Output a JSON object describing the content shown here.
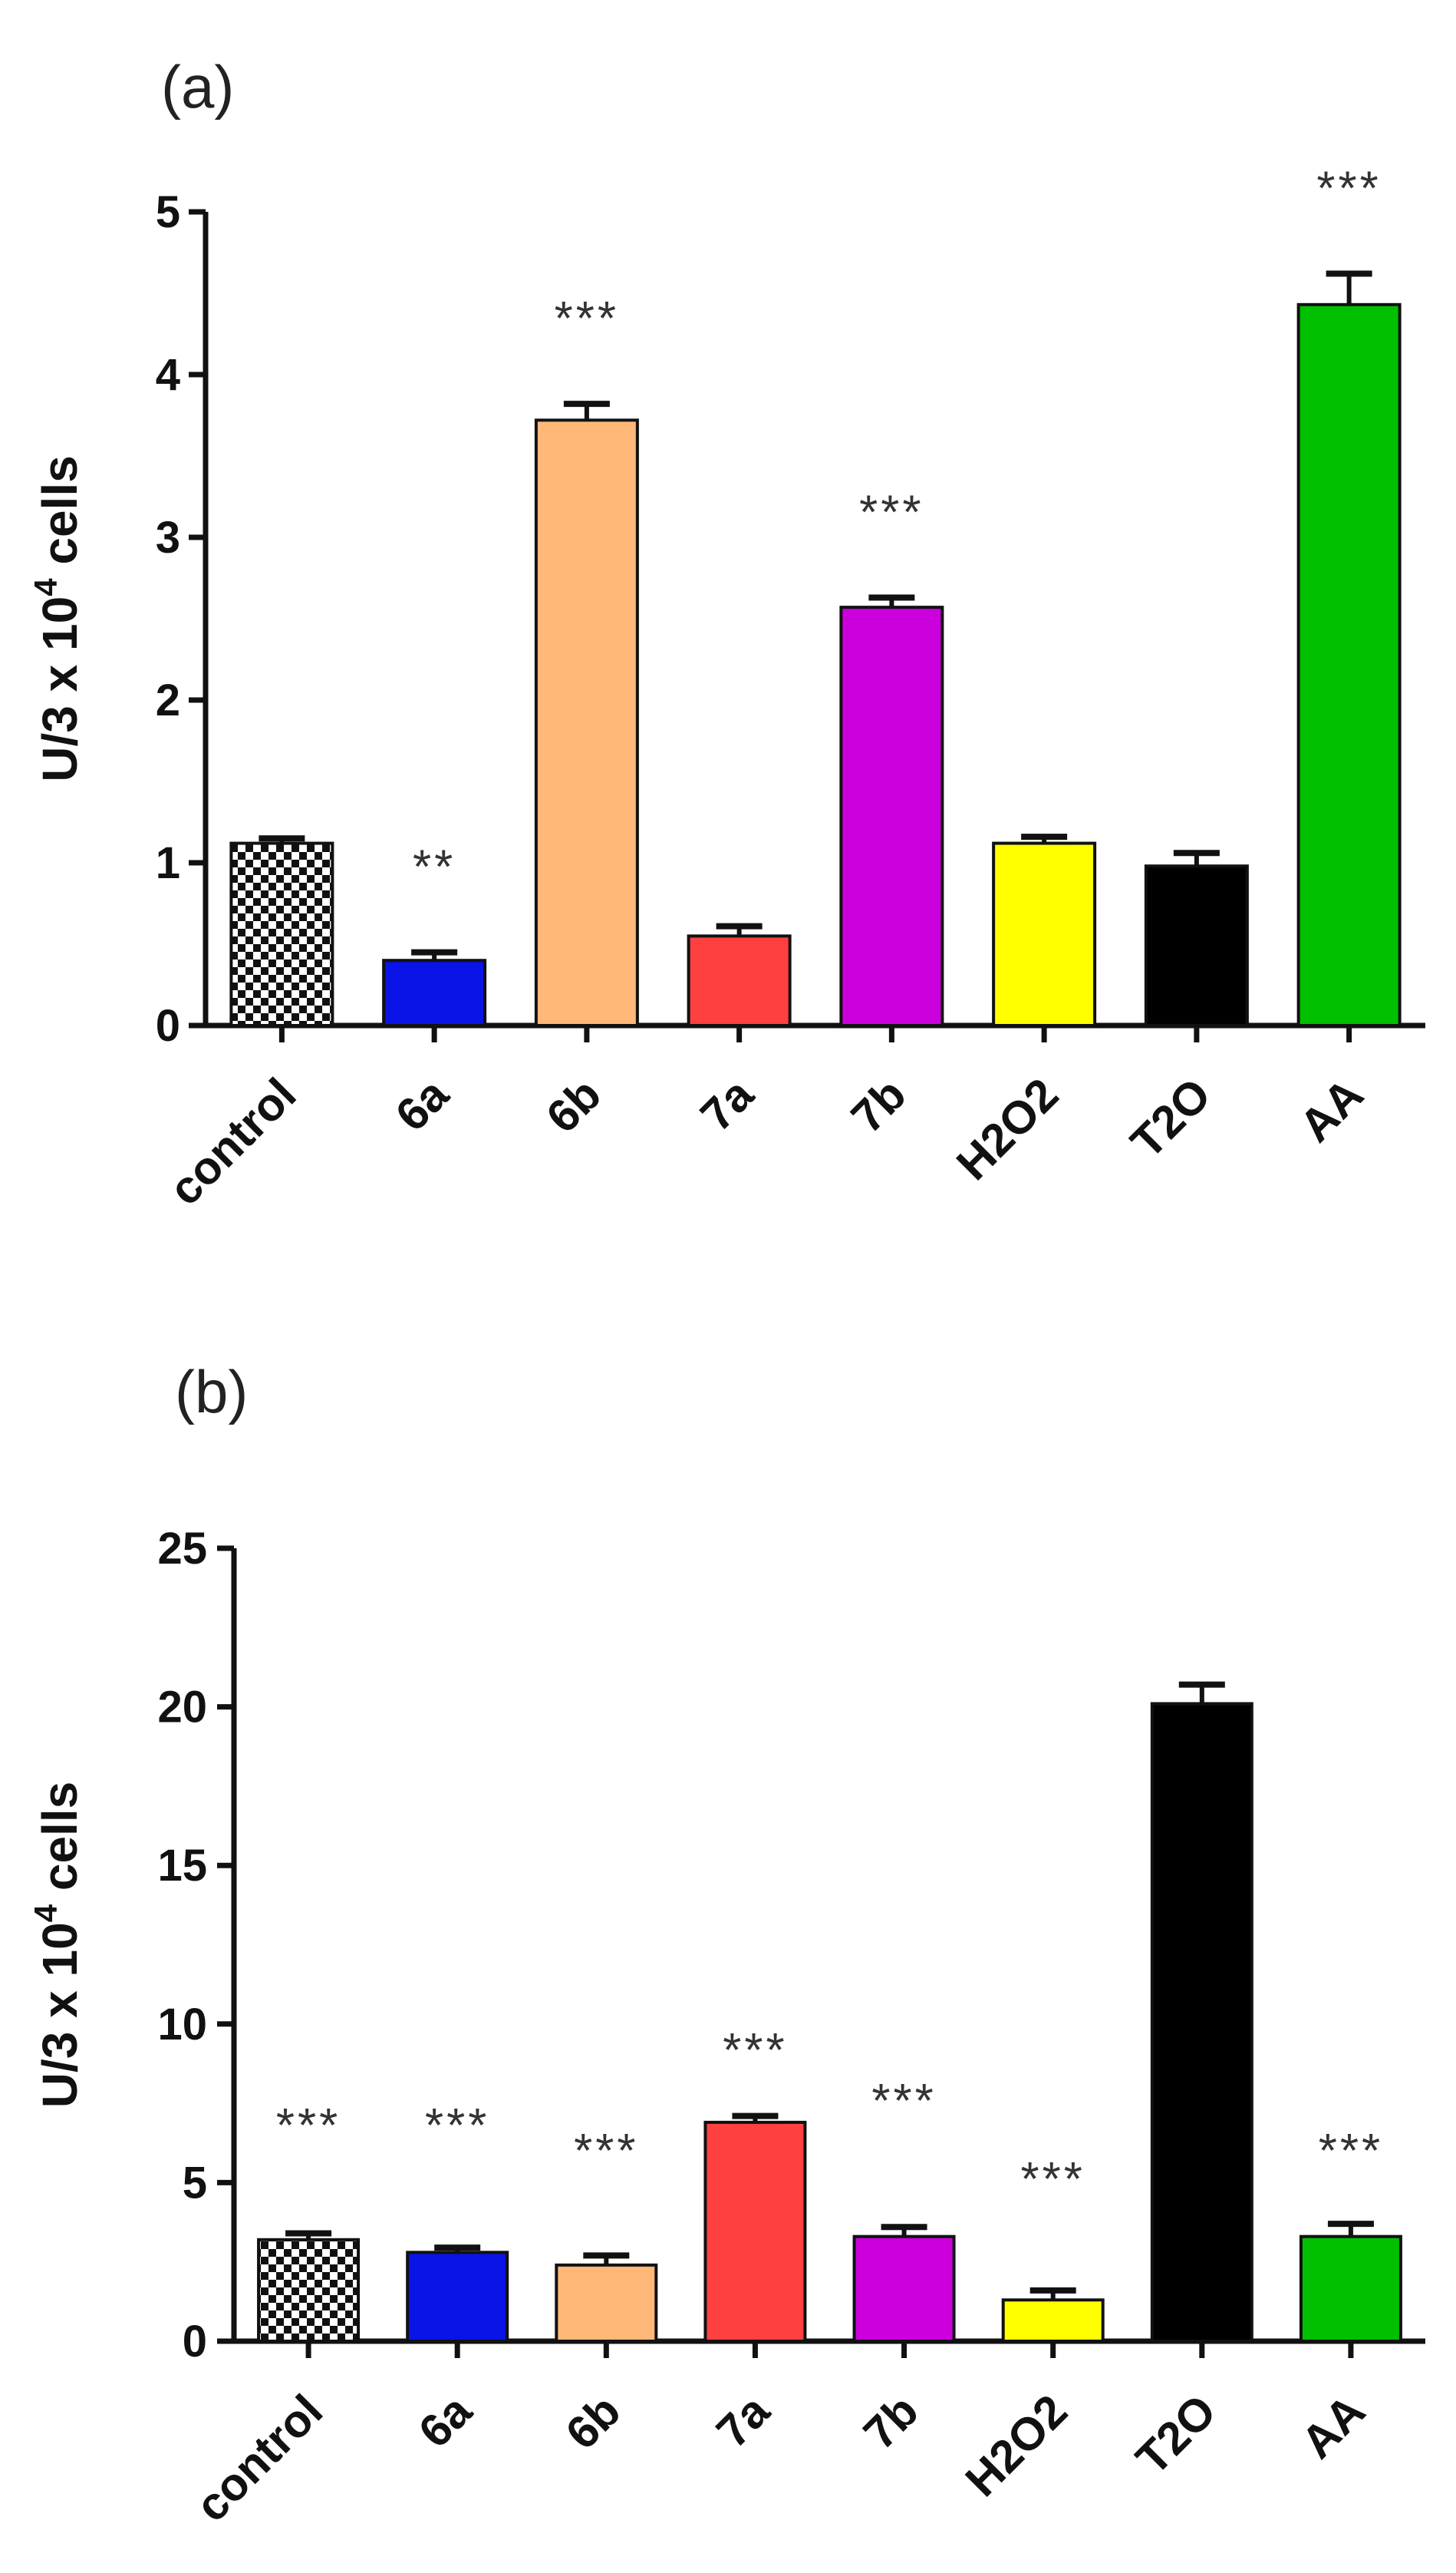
{
  "chart_data": [
    {
      "type": "bar",
      "panel_label": "(a)",
      "categories": [
        "control",
        "6a",
        "6b",
        "7a",
        "7b",
        "H2O2",
        "T2O",
        "AA"
      ],
      "values": [
        1.12,
        0.4,
        3.72,
        0.55,
        2.57,
        1.12,
        0.98,
        4.43
      ],
      "errors": [
        0.03,
        0.05,
        0.1,
        0.06,
        0.06,
        0.04,
        0.08,
        0.19
      ],
      "significance": [
        "",
        "**",
        "***",
        "",
        "***",
        "",
        "",
        "***"
      ],
      "colors": [
        "pattern-checker",
        "#0a14e6",
        "#ffb878",
        "#ff4040",
        "#cc00dd",
        "#ffff00",
        "#000000",
        "#00c000"
      ],
      "ylabel": "U/3 x 10",
      "ylabel_sup": "4",
      "ylabel_suffix": " cells",
      "ylim": [
        0,
        5
      ],
      "yticks": [
        "0",
        "1",
        "2",
        "3",
        "4",
        "5"
      ],
      "grid": false
    },
    {
      "type": "bar",
      "panel_label": "(b)",
      "categories": [
        "control",
        "6a",
        "6b",
        "7a",
        "7b",
        "H2O2",
        "T2O",
        "AA"
      ],
      "values": [
        3.2,
        2.8,
        2.4,
        6.9,
        3.3,
        1.3,
        20.1,
        3.3
      ],
      "errors": [
        0.2,
        0.15,
        0.3,
        0.2,
        0.3,
        0.3,
        0.6,
        0.4
      ],
      "significance": [
        "***",
        "***",
        "***",
        "***",
        "***",
        "***",
        "",
        "***"
      ],
      "colors": [
        "pattern-checker",
        "#0a14e6",
        "#ffb878",
        "#ff4040",
        "#cc00dd",
        "#ffff00",
        "#000000",
        "#00c000"
      ],
      "ylabel": "U/3 x 10",
      "ylabel_sup": "4",
      "ylabel_suffix": " cells",
      "ylim": [
        0,
        25
      ],
      "yticks": [
        "0",
        "5",
        "10",
        "15",
        "20",
        "25"
      ],
      "grid": false
    }
  ]
}
